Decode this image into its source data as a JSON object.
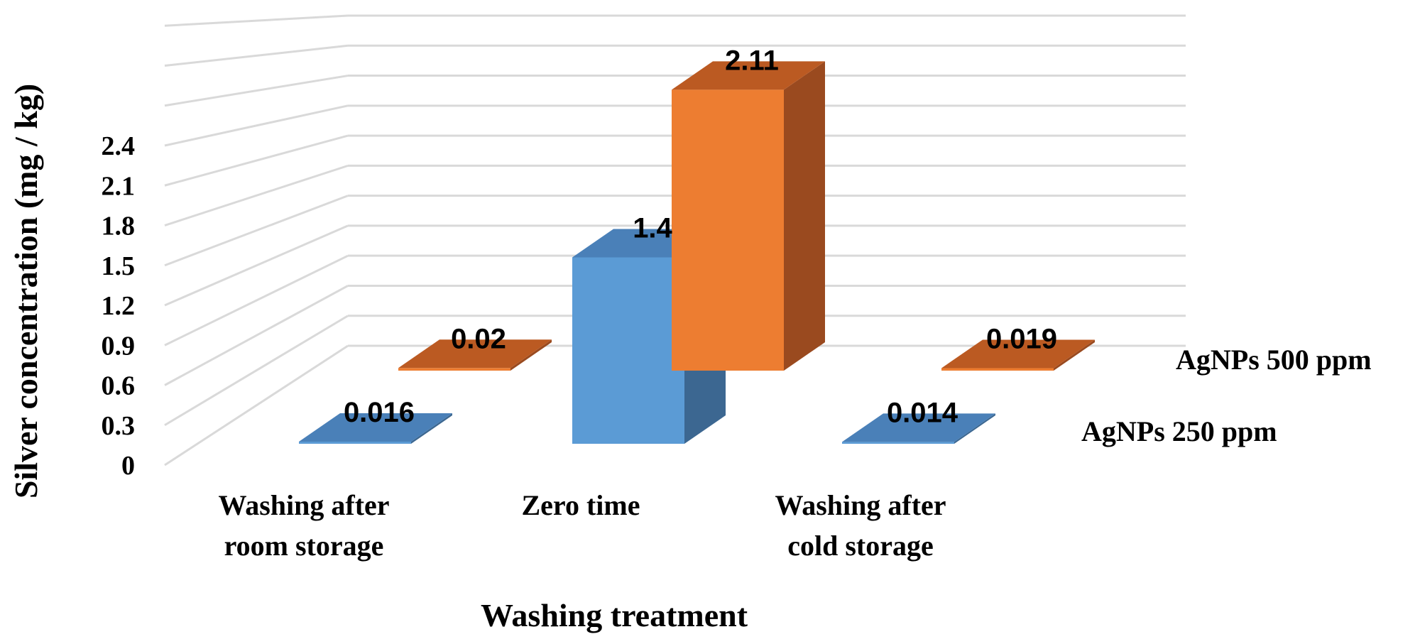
{
  "chart_data": {
    "type": "bar",
    "title": "",
    "xlabel": "Washing treatment",
    "ylabel": "Silver concentration (mg / kg)",
    "ylim": [
      0,
      2.4
    ],
    "yticks": [
      "0",
      "0.3",
      "0.6",
      "0.9",
      "1.2",
      "1.5",
      "1.8",
      "2.1",
      "2.4"
    ],
    "categories": [
      [
        "Washing after",
        "room storage"
      ],
      [
        "Zero time"
      ],
      [
        "Washing after",
        "cold storage"
      ]
    ],
    "series": [
      {
        "name": "AgNPs 250 ppm",
        "values": [
          0.016,
          1.4,
          0.014
        ],
        "labels": [
          "0.016",
          "1.4",
          "0.014"
        ],
        "color": "#5b9bd5"
      },
      {
        "name": "AgNPs 500 ppm",
        "values": [
          0.02,
          2.11,
          0.019
        ],
        "labels": [
          "0.02",
          "2.11",
          "0.019"
        ],
        "color": "#ed7d31"
      }
    ],
    "grid": true,
    "legend": "series labels at right of depth axis"
  }
}
